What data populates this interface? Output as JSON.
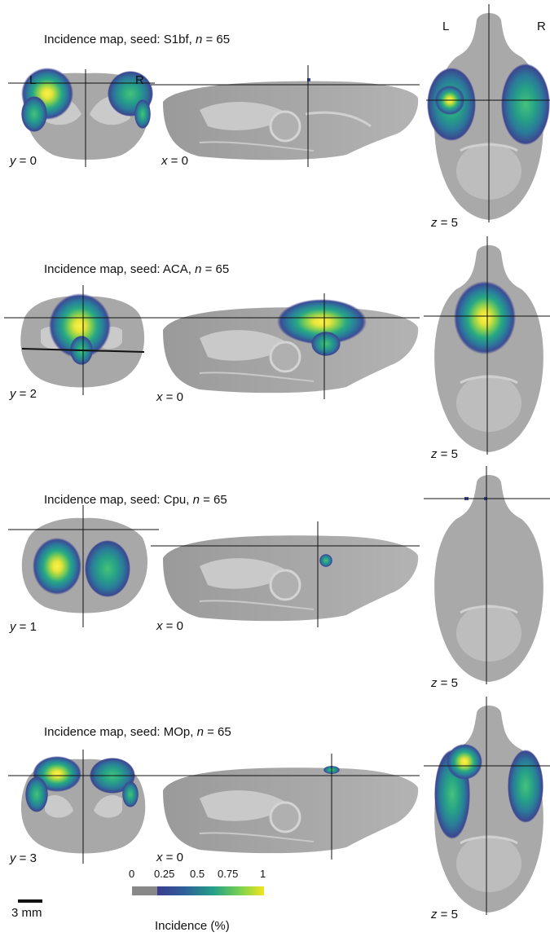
{
  "panels": [
    {
      "title": "Incidence map, seed: S1bf, n = 65",
      "title_prefix": "Incidence map, seed: S1bf, ",
      "n_label": "n",
      "n_value": " = 65",
      "coronal": {
        "axis": "y",
        "value": " = 0"
      },
      "sagittal": {
        "axis": "x",
        "value": " = 0"
      },
      "axial": {
        "axis": "z",
        "value": " = 5"
      }
    },
    {
      "title": "Incidence map, seed: ACA, n = 65",
      "title_prefix": "Incidence map, seed: ACA, ",
      "n_label": "n",
      "n_value": " = 65",
      "coronal": {
        "axis": "y",
        "value": " = 2"
      },
      "sagittal": {
        "axis": "x",
        "value": " = 0"
      },
      "axial": {
        "axis": "z",
        "value": " = 5"
      }
    },
    {
      "title": "Incidence map, seed: Cpu, n = 65",
      "title_prefix": "Incidence map, seed: Cpu, ",
      "n_label": "n",
      "n_value": " = 65",
      "coronal": {
        "axis": "y",
        "value": " = 1"
      },
      "sagittal": {
        "axis": "x",
        "value": " = 0"
      },
      "axial": {
        "axis": "z",
        "value": " = 5"
      }
    },
    {
      "title": "Incidence map, seed: MOp, n = 65",
      "title_prefix": "Incidence map, seed: MOp, ",
      "n_label": "n",
      "n_value": " = 65",
      "coronal": {
        "axis": "y",
        "value": " = 3"
      },
      "sagittal": {
        "axis": "x",
        "value": " = 0"
      },
      "axial": {
        "axis": "z",
        "value": " = 5"
      }
    }
  ],
  "orientation": {
    "left": "L",
    "right": "R"
  },
  "colorbar": {
    "ticks": [
      "0",
      "0.25",
      "0.5",
      "0.75",
      "1"
    ],
    "label": "Incidence (%)",
    "colors": [
      "#888888",
      "#3b3b8f",
      "#2a6f9a",
      "#23a187",
      "#7ad151",
      "#f2e51c"
    ]
  },
  "scalebar": {
    "label": "3 mm"
  },
  "colors": {
    "brain": "#a6a6a6",
    "brain_light": "#d0d0d0",
    "brain_dark": "#8a8a8a",
    "hot": "#f5ef30"
  }
}
